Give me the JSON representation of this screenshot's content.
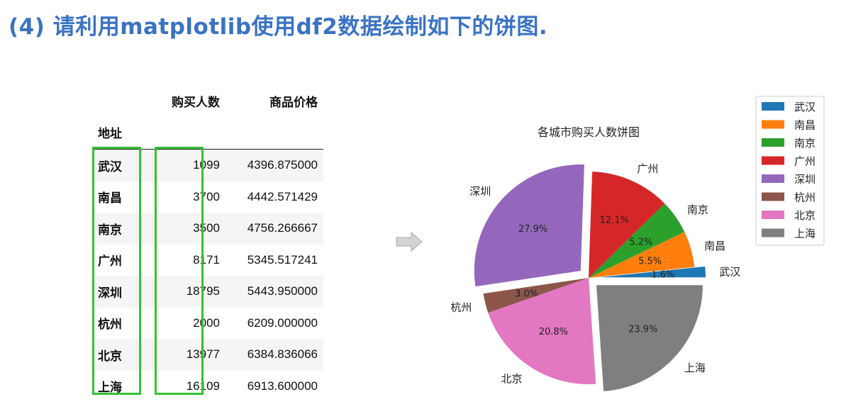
{
  "heading": "(4) 请利用matplotlib使用df2数据绘制如下的饼图.",
  "table": {
    "index_name": "地址",
    "columns": [
      "购买人数",
      "商品价格"
    ],
    "rows": [
      {
        "city": "武汉",
        "count": "1099",
        "price": "4396.875000"
      },
      {
        "city": "南昌",
        "count": "3700",
        "price": "4442.571429"
      },
      {
        "city": "南京",
        "count": "3500",
        "price": "4756.266667"
      },
      {
        "city": "广州",
        "count": "8171",
        "price": "5345.517241"
      },
      {
        "city": "深圳",
        "count": "18795",
        "price": "5443.950000"
      },
      {
        "city": "杭州",
        "count": "2000",
        "price": "6209.000000"
      },
      {
        "city": "北京",
        "count": "13977",
        "price": "6384.836066"
      },
      {
        "city": "上海",
        "count": "16109",
        "price": "6913.600000"
      }
    ]
  },
  "chart_data": {
    "type": "pie",
    "title": "各城市购买人数饼图",
    "labels": [
      "武汉",
      "南昌",
      "南京",
      "广州",
      "深圳",
      "杭州",
      "北京",
      "上海"
    ],
    "values": [
      1099,
      3700,
      3500,
      8171,
      18795,
      2000,
      13977,
      16109
    ],
    "percent_labels": [
      "1.6%",
      "5.5%",
      "5.2%",
      "12.1%",
      "27.9%",
      "3.0%",
      "20.8%",
      "23.9%"
    ],
    "explode": [
      0.1,
      0.0,
      0.0,
      0.0,
      0.1,
      0.0,
      0.0,
      0.1
    ],
    "colors": [
      "#1f77b4",
      "#ff7f0e",
      "#2ca02c",
      "#d62728",
      "#9467bd",
      "#8c564b",
      "#e377c2",
      "#7f7f7f"
    ],
    "legend_position": "top-right",
    "legend": [
      "武汉",
      "南昌",
      "南京",
      "广州",
      "深圳",
      "杭州",
      "北京",
      "上海"
    ]
  }
}
